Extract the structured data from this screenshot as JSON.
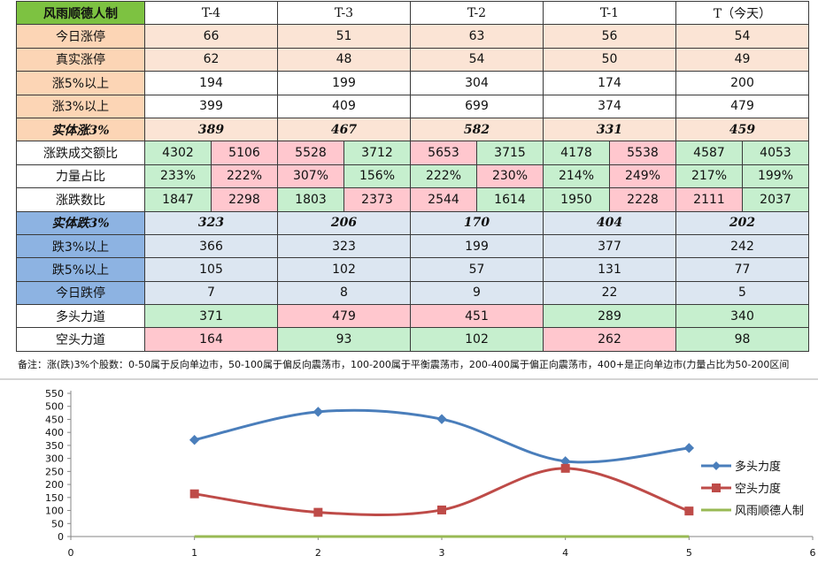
{
  "table": {
    "brand": "风雨顺德人制",
    "headers": [
      "T-4",
      "T-3",
      "T-2",
      "T-1",
      "T（今天）"
    ],
    "rows_top": [
      {
        "label": "今日涨停",
        "values": [
          "66",
          "51",
          "63",
          "56",
          "54"
        ]
      },
      {
        "label": "真实涨停",
        "values": [
          "62",
          "48",
          "54",
          "50",
          "49"
        ]
      },
      {
        "label": "涨5%以上",
        "values": [
          "194",
          "199",
          "304",
          "174",
          "200"
        ]
      },
      {
        "label": "涨3%以上",
        "values": [
          "399",
          "409",
          "699",
          "374",
          "479"
        ]
      }
    ],
    "solid_up": {
      "label": "实体涨3%",
      "values": [
        "389",
        "467",
        "582",
        "331",
        "459"
      ]
    },
    "split_rows": [
      {
        "label": "涨跌成交额比",
        "values": [
          "4302",
          "5106",
          "5528",
          "3712",
          "5653",
          "3715",
          "4178",
          "5538",
          "4587",
          "4053"
        ]
      },
      {
        "label": "力量占比",
        "values": [
          "233%",
          "222%",
          "307%",
          "156%",
          "222%",
          "230%",
          "214%",
          "249%",
          "217%",
          "199%"
        ]
      },
      {
        "label": "涨跌数比",
        "values": [
          "1847",
          "2298",
          "1803",
          "2373",
          "2544",
          "1614",
          "1950",
          "2228",
          "2111",
          "2037"
        ]
      }
    ],
    "solid_down": {
      "label": "实体跌3%",
      "values": [
        "323",
        "206",
        "170",
        "404",
        "202"
      ]
    },
    "rows_bottom": [
      {
        "label": "跌3%以上",
        "values": [
          "366",
          "323",
          "199",
          "377",
          "242"
        ]
      },
      {
        "label": "跌5%以上",
        "values": [
          "105",
          "102",
          "57",
          "131",
          "77"
        ]
      },
      {
        "label": "今日跌停",
        "values": [
          "7",
          "8",
          "9",
          "22",
          "5"
        ]
      }
    ],
    "bull": {
      "label": "多头力道",
      "values": [
        "371",
        "479",
        "451",
        "289",
        "340"
      ]
    },
    "bear": {
      "label": "空头力道",
      "values": [
        "164",
        "93",
        "102",
        "262",
        "98"
      ]
    }
  },
  "note": "备注：涨(跌)3%个股数：0-50属于反向单边市，50-100属于偏反向震荡市，100-200属于平衡震荡市，200-400属于偏正向震荡市，400+是正向单边市(力量占比为50-200区间",
  "chart_data": {
    "type": "line",
    "x": [
      1,
      2,
      3,
      4,
      5
    ],
    "series": [
      {
        "name": "多头力度",
        "values": [
          371,
          479,
          451,
          289,
          340
        ],
        "color": "#4a7ebb",
        "marker": "diamond"
      },
      {
        "name": "空头力度",
        "values": [
          164,
          93,
          102,
          262,
          98
        ],
        "color": "#be4b48",
        "marker": "square"
      },
      {
        "name": "风雨顺德人制",
        "values": [
          0,
          0,
          0,
          0,
          0
        ],
        "color": "#98b954",
        "marker": "none"
      }
    ],
    "xlim": [
      0,
      6
    ],
    "ylim": [
      0,
      550
    ],
    "xticks": [
      "0",
      "1",
      "2",
      "3",
      "4",
      "5",
      "6"
    ],
    "yticks": [
      "0",
      "50",
      "100",
      "150",
      "200",
      "250",
      "300",
      "350",
      "400",
      "450",
      "500",
      "550"
    ],
    "legend": "right",
    "grid": false
  }
}
